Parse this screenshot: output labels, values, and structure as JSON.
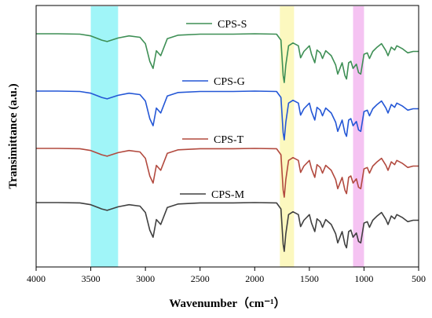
{
  "chart_data": {
    "type": "line",
    "title": "",
    "xlabel": "Wavenumber（cm⁻¹）",
    "ylabel": "Transimittance (a.u.)",
    "xlim": [
      4000,
      500
    ],
    "x_reversed": true,
    "x_ticks": [
      "4000",
      "3500",
      "3000",
      "2500",
      "2000",
      "1500",
      "1000",
      "500"
    ],
    "y_ticks": false,
    "grid": false,
    "highlight_bands": [
      {
        "range": [
          3500,
          3250
        ],
        "color": "#8ff3f7"
      },
      {
        "range": [
          1770,
          1640
        ],
        "color": "#fbf7b4"
      },
      {
        "range": [
          1100,
          1000
        ],
        "color": "#f3b8f0"
      }
    ],
    "series": [
      {
        "name": "CPS-S",
        "color": "#3e8f55",
        "offset": 3,
        "points": [
          [
            4000,
            0.99
          ],
          [
            3800,
            0.99
          ],
          [
            3600,
            0.985
          ],
          [
            3500,
            0.96
          ],
          [
            3400,
            0.9
          ],
          [
            3350,
            0.88
          ],
          [
            3250,
            0.93
          ],
          [
            3150,
            0.96
          ],
          [
            3050,
            0.94
          ],
          [
            3000,
            0.85
          ],
          [
            2960,
            0.6
          ],
          [
            2930,
            0.5
          ],
          [
            2900,
            0.75
          ],
          [
            2860,
            0.68
          ],
          [
            2800,
            0.92
          ],
          [
            2700,
            0.97
          ],
          [
            2500,
            0.985
          ],
          [
            2300,
            0.985
          ],
          [
            2200,
            0.985
          ],
          [
            2000,
            0.99
          ],
          [
            1800,
            0.985
          ],
          [
            1760,
            0.9
          ],
          [
            1740,
            0.4
          ],
          [
            1730,
            0.3
          ],
          [
            1715,
            0.55
          ],
          [
            1690,
            0.82
          ],
          [
            1650,
            0.86
          ],
          [
            1600,
            0.82
          ],
          [
            1580,
            0.65
          ],
          [
            1550,
            0.74
          ],
          [
            1500,
            0.82
          ],
          [
            1480,
            0.7
          ],
          [
            1450,
            0.58
          ],
          [
            1430,
            0.76
          ],
          [
            1400,
            0.72
          ],
          [
            1380,
            0.64
          ],
          [
            1350,
            0.75
          ],
          [
            1300,
            0.68
          ],
          [
            1260,
            0.55
          ],
          [
            1240,
            0.42
          ],
          [
            1200,
            0.58
          ],
          [
            1175,
            0.4
          ],
          [
            1160,
            0.35
          ],
          [
            1140,
            0.58
          ],
          [
            1120,
            0.6
          ],
          [
            1100,
            0.5
          ],
          [
            1070,
            0.56
          ],
          [
            1050,
            0.44
          ],
          [
            1030,
            0.42
          ],
          [
            1000,
            0.7
          ],
          [
            970,
            0.72
          ],
          [
            950,
            0.64
          ],
          [
            920,
            0.74
          ],
          [
            880,
            0.8
          ],
          [
            840,
            0.85
          ],
          [
            800,
            0.75
          ],
          [
            780,
            0.68
          ],
          [
            750,
            0.8
          ],
          [
            720,
            0.76
          ],
          [
            700,
            0.82
          ],
          [
            650,
            0.78
          ],
          [
            600,
            0.72
          ],
          [
            550,
            0.74
          ],
          [
            500,
            0.74
          ]
        ]
      },
      {
        "name": "CPS-G",
        "color": "#2457d6",
        "offset": 2,
        "points": [
          [
            4000,
            0.99
          ],
          [
            3800,
            0.99
          ],
          [
            3600,
            0.985
          ],
          [
            3500,
            0.96
          ],
          [
            3400,
            0.9
          ],
          [
            3350,
            0.88
          ],
          [
            3250,
            0.93
          ],
          [
            3150,
            0.96
          ],
          [
            3050,
            0.94
          ],
          [
            3000,
            0.85
          ],
          [
            2960,
            0.6
          ],
          [
            2930,
            0.5
          ],
          [
            2900,
            0.75
          ],
          [
            2860,
            0.68
          ],
          [
            2800,
            0.92
          ],
          [
            2700,
            0.97
          ],
          [
            2500,
            0.985
          ],
          [
            2300,
            0.985
          ],
          [
            2200,
            0.985
          ],
          [
            2000,
            0.99
          ],
          [
            1800,
            0.985
          ],
          [
            1760,
            0.9
          ],
          [
            1740,
            0.4
          ],
          [
            1730,
            0.3
          ],
          [
            1715,
            0.55
          ],
          [
            1690,
            0.82
          ],
          [
            1650,
            0.86
          ],
          [
            1600,
            0.82
          ],
          [
            1580,
            0.65
          ],
          [
            1550,
            0.74
          ],
          [
            1500,
            0.82
          ],
          [
            1480,
            0.7
          ],
          [
            1450,
            0.58
          ],
          [
            1430,
            0.76
          ],
          [
            1400,
            0.72
          ],
          [
            1380,
            0.64
          ],
          [
            1350,
            0.75
          ],
          [
            1300,
            0.68
          ],
          [
            1260,
            0.55
          ],
          [
            1240,
            0.42
          ],
          [
            1200,
            0.58
          ],
          [
            1175,
            0.4
          ],
          [
            1160,
            0.35
          ],
          [
            1140,
            0.58
          ],
          [
            1120,
            0.6
          ],
          [
            1100,
            0.5
          ],
          [
            1070,
            0.56
          ],
          [
            1050,
            0.44
          ],
          [
            1030,
            0.42
          ],
          [
            1000,
            0.7
          ],
          [
            970,
            0.72
          ],
          [
            950,
            0.64
          ],
          [
            920,
            0.74
          ],
          [
            880,
            0.8
          ],
          [
            840,
            0.85
          ],
          [
            800,
            0.75
          ],
          [
            780,
            0.68
          ],
          [
            750,
            0.8
          ],
          [
            720,
            0.76
          ],
          [
            700,
            0.82
          ],
          [
            650,
            0.78
          ],
          [
            600,
            0.72
          ],
          [
            550,
            0.74
          ],
          [
            500,
            0.74
          ]
        ]
      },
      {
        "name": "CPS-T",
        "color": "#b24a3f",
        "offset": 1,
        "points": [
          [
            4000,
            0.99
          ],
          [
            3800,
            0.99
          ],
          [
            3600,
            0.985
          ],
          [
            3500,
            0.96
          ],
          [
            3400,
            0.9
          ],
          [
            3350,
            0.88
          ],
          [
            3250,
            0.93
          ],
          [
            3150,
            0.96
          ],
          [
            3050,
            0.94
          ],
          [
            3000,
            0.85
          ],
          [
            2960,
            0.6
          ],
          [
            2930,
            0.5
          ],
          [
            2900,
            0.75
          ],
          [
            2860,
            0.68
          ],
          [
            2800,
            0.92
          ],
          [
            2700,
            0.97
          ],
          [
            2500,
            0.985
          ],
          [
            2300,
            0.985
          ],
          [
            2200,
            0.985
          ],
          [
            2000,
            0.99
          ],
          [
            1800,
            0.985
          ],
          [
            1760,
            0.9
          ],
          [
            1740,
            0.4
          ],
          [
            1730,
            0.3
          ],
          [
            1715,
            0.55
          ],
          [
            1690,
            0.82
          ],
          [
            1650,
            0.86
          ],
          [
            1600,
            0.82
          ],
          [
            1580,
            0.65
          ],
          [
            1550,
            0.74
          ],
          [
            1500,
            0.82
          ],
          [
            1480,
            0.7
          ],
          [
            1450,
            0.58
          ],
          [
            1430,
            0.76
          ],
          [
            1400,
            0.72
          ],
          [
            1380,
            0.64
          ],
          [
            1350,
            0.75
          ],
          [
            1300,
            0.68
          ],
          [
            1260,
            0.55
          ],
          [
            1240,
            0.42
          ],
          [
            1200,
            0.58
          ],
          [
            1175,
            0.4
          ],
          [
            1160,
            0.35
          ],
          [
            1140,
            0.58
          ],
          [
            1120,
            0.6
          ],
          [
            1100,
            0.5
          ],
          [
            1070,
            0.56
          ],
          [
            1050,
            0.44
          ],
          [
            1030,
            0.42
          ],
          [
            1000,
            0.7
          ],
          [
            970,
            0.72
          ],
          [
            950,
            0.64
          ],
          [
            920,
            0.74
          ],
          [
            880,
            0.8
          ],
          [
            840,
            0.85
          ],
          [
            800,
            0.75
          ],
          [
            780,
            0.68
          ],
          [
            750,
            0.8
          ],
          [
            720,
            0.76
          ],
          [
            700,
            0.82
          ],
          [
            650,
            0.78
          ],
          [
            600,
            0.72
          ],
          [
            550,
            0.74
          ],
          [
            500,
            0.74
          ]
        ]
      },
      {
        "name": "CPS-M",
        "color": "#404040",
        "offset": 0,
        "points": [
          [
            4000,
            0.99
          ],
          [
            3800,
            0.99
          ],
          [
            3600,
            0.985
          ],
          [
            3500,
            0.96
          ],
          [
            3400,
            0.9
          ],
          [
            3350,
            0.88
          ],
          [
            3250,
            0.93
          ],
          [
            3150,
            0.96
          ],
          [
            3050,
            0.94
          ],
          [
            3000,
            0.85
          ],
          [
            2960,
            0.6
          ],
          [
            2930,
            0.5
          ],
          [
            2900,
            0.75
          ],
          [
            2860,
            0.68
          ],
          [
            2800,
            0.92
          ],
          [
            2700,
            0.97
          ],
          [
            2500,
            0.985
          ],
          [
            2300,
            0.985
          ],
          [
            2200,
            0.985
          ],
          [
            2000,
            0.99
          ],
          [
            1800,
            0.985
          ],
          [
            1760,
            0.9
          ],
          [
            1740,
            0.4
          ],
          [
            1730,
            0.3
          ],
          [
            1715,
            0.55
          ],
          [
            1690,
            0.82
          ],
          [
            1650,
            0.86
          ],
          [
            1600,
            0.82
          ],
          [
            1580,
            0.65
          ],
          [
            1550,
            0.74
          ],
          [
            1500,
            0.82
          ],
          [
            1480,
            0.7
          ],
          [
            1450,
            0.58
          ],
          [
            1430,
            0.76
          ],
          [
            1400,
            0.72
          ],
          [
            1380,
            0.64
          ],
          [
            1350,
            0.75
          ],
          [
            1300,
            0.68
          ],
          [
            1260,
            0.55
          ],
          [
            1240,
            0.42
          ],
          [
            1200,
            0.58
          ],
          [
            1175,
            0.4
          ],
          [
            1160,
            0.35
          ],
          [
            1140,
            0.58
          ],
          [
            1120,
            0.6
          ],
          [
            1100,
            0.5
          ],
          [
            1070,
            0.56
          ],
          [
            1050,
            0.44
          ],
          [
            1030,
            0.42
          ],
          [
            1000,
            0.7
          ],
          [
            970,
            0.72
          ],
          [
            950,
            0.64
          ],
          [
            920,
            0.74
          ],
          [
            880,
            0.8
          ],
          [
            840,
            0.85
          ],
          [
            800,
            0.75
          ],
          [
            780,
            0.68
          ],
          [
            750,
            0.8
          ],
          [
            720,
            0.76
          ],
          [
            700,
            0.82
          ],
          [
            650,
            0.78
          ],
          [
            600,
            0.72
          ],
          [
            550,
            0.74
          ],
          [
            500,
            0.74
          ]
        ]
      }
    ]
  }
}
